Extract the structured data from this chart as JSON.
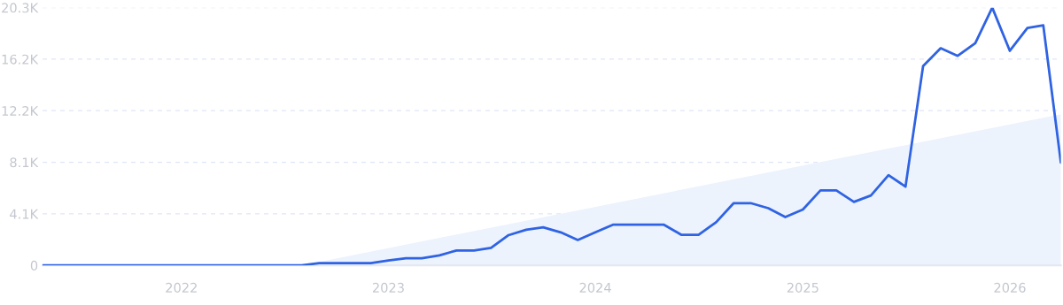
{
  "chart_data": {
    "type": "line",
    "x": [
      "2021-05",
      "2021-06",
      "2021-07",
      "2021-08",
      "2021-09",
      "2021-10",
      "2021-11",
      "2021-12",
      "2022-01",
      "2022-02",
      "2022-03",
      "2022-04",
      "2022-05",
      "2022-06",
      "2022-07",
      "2022-08",
      "2022-09",
      "2022-10",
      "2022-11",
      "2022-12",
      "2023-01",
      "2023-02",
      "2023-03",
      "2023-04",
      "2023-05",
      "2023-06",
      "2023-07",
      "2023-08",
      "2023-09",
      "2023-10",
      "2023-11",
      "2023-12",
      "2024-01",
      "2024-02",
      "2024-03",
      "2024-04",
      "2024-05",
      "2024-06",
      "2024-07",
      "2024-08",
      "2024-09",
      "2024-10",
      "2024-11",
      "2024-12",
      "2025-01",
      "2025-02",
      "2025-03",
      "2025-04",
      "2025-05",
      "2025-06",
      "2025-07",
      "2025-08",
      "2025-09",
      "2025-10",
      "2025-11",
      "2025-12",
      "2026-01",
      "2026-02",
      "2026-03",
      "2026-04"
    ],
    "series": [
      {
        "type": "area",
        "color": "#ecf3fd",
        "x": [
          "2022-08",
          "2026-04"
        ],
        "values": [
          0,
          11900
        ]
      },
      {
        "color": "#2f63e3",
        "values": [
          0,
          0,
          0,
          0,
          0,
          0,
          0,
          0,
          0,
          0,
          0,
          0,
          0,
          0,
          0,
          0,
          180,
          180,
          180,
          170,
          380,
          560,
          560,
          790,
          1170,
          1170,
          1380,
          2380,
          2800,
          3000,
          2600,
          2000,
          2600,
          3200,
          3200,
          3200,
          3200,
          2400,
          2400,
          3400,
          4900,
          4900,
          4500,
          3800,
          4400,
          5900,
          5900,
          5000,
          5500,
          7100,
          6200,
          15700,
          17100,
          16500,
          17500,
          20300,
          16900,
          18700,
          18900,
          8100
        ]
      }
    ],
    "xlim": [
      "2021-05",
      "2026-04"
    ],
    "xticks": [
      {
        "value": "2022",
        "label": "2022"
      },
      {
        "value": "2023",
        "label": "2023"
      },
      {
        "value": "2024",
        "label": "2024"
      },
      {
        "value": "2025",
        "label": "2025"
      },
      {
        "value": "2026",
        "label": "2026"
      }
    ],
    "ylim": [
      0,
      20300
    ],
    "yticks": [
      0,
      {
        "value": 4060,
        "label": "4.1K"
      },
      {
        "value": 8120,
        "label": "8.1K"
      },
      {
        "value": 12180,
        "label": "12.2K"
      },
      {
        "value": 16240,
        "label": "16.2K"
      },
      {
        "value": 20300,
        "label": "20.3K"
      }
    ],
    "grid": "y",
    "line_style": "solid",
    "marker": "none"
  }
}
